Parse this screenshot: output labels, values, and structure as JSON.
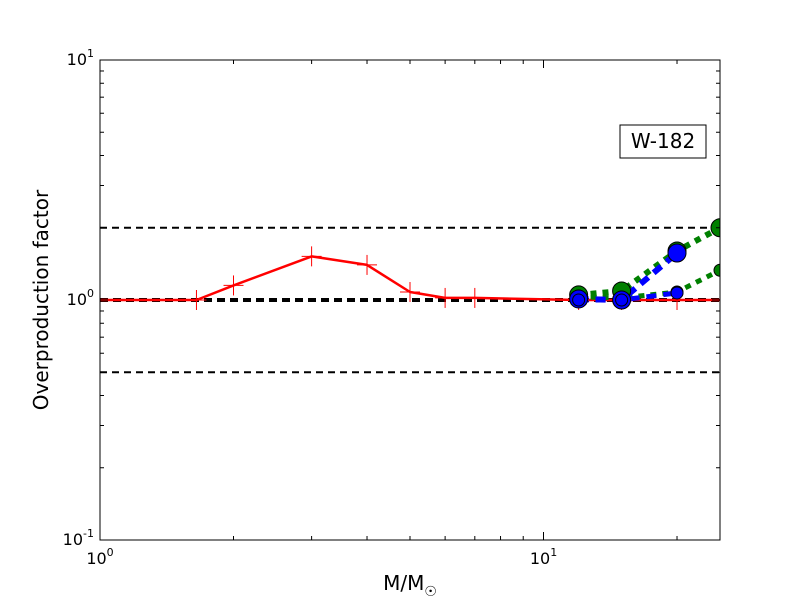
{
  "chart_data": {
    "type": "line",
    "title": "",
    "xlabel": "M/M",
    "xlabel_subscript": "☉",
    "ylabel": "Overproduction factor",
    "xscale": "log",
    "yscale": "log",
    "xlim": [
      1,
      25
    ],
    "ylim": [
      0.1,
      10
    ],
    "grid": false,
    "annotation": "W-182",
    "annotation_placement": "top-right",
    "x_ticks": [
      {
        "value": 1,
        "base": "10",
        "exp": "0"
      },
      {
        "value": 10,
        "base": "10",
        "exp": "1"
      }
    ],
    "y_ticks": [
      {
        "value": 0.1,
        "base": "10",
        "exp": "-1"
      },
      {
        "value": 1,
        "base": "10",
        "exp": "0"
      },
      {
        "value": 10,
        "base": "10",
        "exp": "1"
      }
    ],
    "reference_lines": [
      {
        "y": 2.0,
        "style": "dashed",
        "color": "#000000",
        "weight": "thin"
      },
      {
        "y": 1.0,
        "style": "dashed",
        "color": "#000000",
        "weight": "thick"
      },
      {
        "y": 0.5,
        "style": "dashed",
        "color": "#000000",
        "weight": "thin"
      }
    ],
    "series": [
      {
        "style": "solid",
        "color": "#ff0000",
        "marker": "plus",
        "x": [
          1.0,
          1.65,
          2.0,
          3.0,
          4.0,
          5.0,
          6.0,
          7.0,
          12.0,
          15.0,
          20.0,
          25.0
        ],
        "y": [
          1.0,
          1.0,
          1.15,
          1.52,
          1.4,
          1.08,
          1.02,
          1.02,
          1.0,
          1.0,
          1.0,
          1.0
        ]
      },
      {
        "style": "dotted",
        "color": "#008000",
        "marker": "circle",
        "x": [
          12.0,
          15.0,
          20.0,
          25.0
        ],
        "y": [
          1.05,
          1.09,
          1.6,
          2.0
        ]
      },
      {
        "style": "dotted",
        "color": "#008000",
        "marker": "circle-small",
        "x": [
          12.0,
          15.0,
          20.0,
          25.0
        ],
        "y": [
          1.03,
          1.02,
          1.08,
          1.33
        ]
      },
      {
        "style": "dashed",
        "color": "#0000ff",
        "marker": "circle",
        "x": [
          12.0,
          15.0,
          20.0
        ],
        "y": [
          1.01,
          1.0,
          1.57
        ]
      },
      {
        "style": "dashed",
        "color": "#0000ff",
        "marker": "circle-small",
        "x": [
          12.0,
          15.0,
          20.0
        ],
        "y": [
          1.0,
          1.0,
          1.07
        ]
      }
    ]
  }
}
